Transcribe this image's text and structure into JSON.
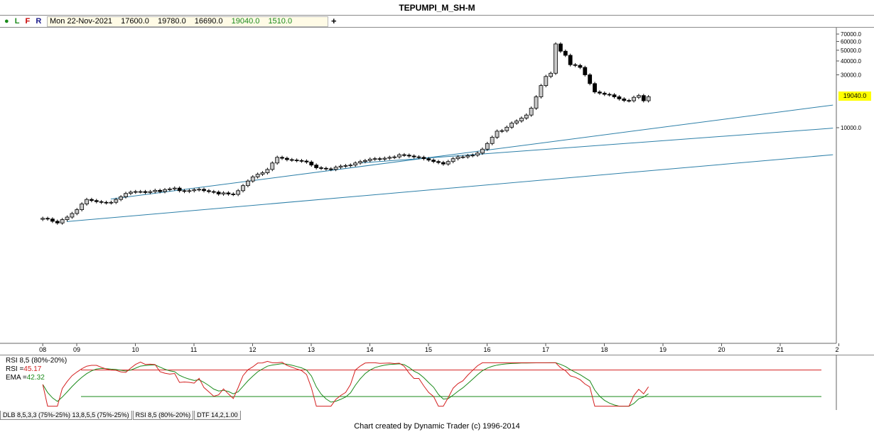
{
  "title": "TEPUMPI_M_SH-M",
  "toolbar": {
    "l": "L",
    "f": "F",
    "r": "R",
    "plus": "+"
  },
  "info": {
    "date": "Mon 22-Nov-2021",
    "open": "17600.0",
    "high": "19780.0",
    "low": "16690.0",
    "close": "19040.0",
    "change": "1510.0"
  },
  "last_price_label": "19040.0",
  "colors": {
    "channel": "#2c7fa8",
    "up_body": "#c8c8c8",
    "down_body": "#000000",
    "rsi_line": "#d42020",
    "ema_line": "#1a8a1a",
    "upper_band": "#d42020",
    "lower_band": "#1a8a1a",
    "badge": "#ffff00"
  },
  "rsi_panel": {
    "label": "RSI 8,5 (80%-20%)",
    "rsi_label": "RSI =",
    "rsi_value": "45.17",
    "ema_label": "EMA =",
    "ema_value": "42.32",
    "upper": 80,
    "lower": 20
  },
  "tabs": [
    "DLB 8,5,3,3 (75%-25%) 13,8,5,5 (75%-25%)",
    "RSI 8,5 (80%-20%)",
    "DTF 14,2,1.00"
  ],
  "footer": "Chart created by Dynamic Trader  (c) 1996-2014",
  "chart_data": {
    "type": "candlestick",
    "title": "TEPUMPI_M_SH-M",
    "y_scale": "log",
    "y_tick_labels": [
      "70000.0",
      "60000.0",
      "50000.0",
      "40000.0",
      "30000.0",
      "10000.0"
    ],
    "y_tick_values": [
      70000,
      60000,
      50000,
      40000,
      30000,
      10000
    ],
    "x_tick_labels": [
      "08",
      "09",
      "10",
      "11",
      "12",
      "13",
      "14",
      "15",
      "16",
      "17",
      "18",
      "19",
      "20",
      "21",
      "2"
    ],
    "x_tick_years": [
      2008.42,
      2009.0,
      2010.0,
      2011.0,
      2012.0,
      2013.0,
      2014.0,
      2015.0,
      2016.0,
      2017.0,
      2018.0,
      2019.0,
      2020.0,
      2021.0,
      2022.0
    ],
    "candle_closes": [
      1520,
      1500,
      1430,
      1380,
      1480,
      1560,
      1680,
      1820,
      2050,
      2250,
      2200,
      2150,
      2120,
      2100,
      2120,
      2250,
      2380,
      2550,
      2620,
      2650,
      2650,
      2600,
      2650,
      2720,
      2650,
      2760,
      2800,
      2850,
      2700,
      2660,
      2700,
      2750,
      2780,
      2700,
      2650,
      2620,
      2520,
      2580,
      2520,
      2500,
      2700,
      3000,
      3300,
      3600,
      3800,
      3920,
      4200,
      4800,
      5400,
      5300,
      5150,
      5100,
      5050,
      5000,
      4900,
      4600,
      4350,
      4300,
      4250,
      4200,
      4400,
      4500,
      4550,
      4600,
      4800,
      4950,
      5050,
      5200,
      5250,
      5200,
      5300,
      5400,
      5450,
      5700,
      5650,
      5550,
      5450,
      5400,
      5250,
      5100,
      4950,
      4850,
      4700,
      4950,
      5250,
      5450,
      5450,
      5600,
      5650,
      5900,
      6400,
      7200,
      8200,
      9300,
      9400,
      10100,
      11000,
      11500,
      12200,
      13000,
      15000,
      19000,
      24000,
      29000,
      31000,
      57000,
      49000,
      45000,
      37000,
      36500,
      35000,
      30000,
      25000,
      21000,
      20500,
      20000,
      19800,
      19000,
      18200,
      17600,
      17500,
      18800,
      19500,
      17500,
      19040
    ],
    "channel": {
      "upper": {
        "x": [
          2009.58,
          2021.9
        ],
        "y": [
          2270,
          16000
        ]
      },
      "middle": {
        "x": [
          2013.83,
          2021.9
        ],
        "y": [
          4800,
          9900
        ]
      },
      "lower": {
        "x": [
          2008.83,
          2021.9
        ],
        "y": [
          1420,
          5700
        ]
      }
    },
    "rsi": {
      "upper": 80,
      "lower": 20,
      "last_rsi": 45.17,
      "last_ema": 42.32
    }
  }
}
